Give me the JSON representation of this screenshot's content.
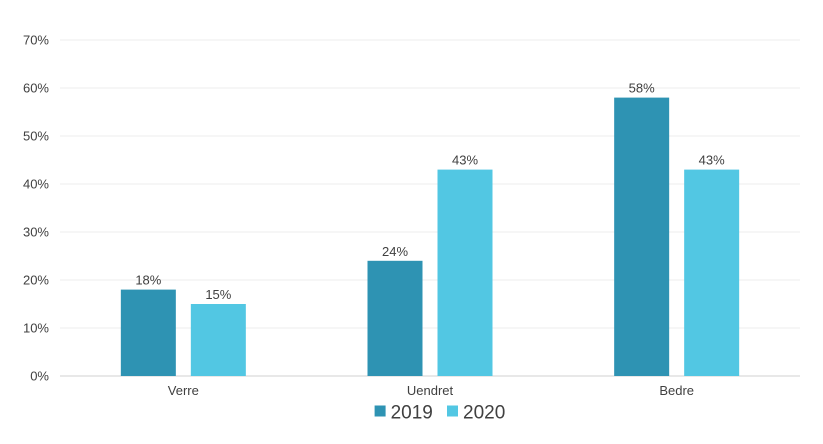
{
  "chart_data": {
    "type": "bar",
    "categories": [
      "Verre",
      "Uendret",
      "Bedre"
    ],
    "series": [
      {
        "name": "2019",
        "values": [
          18,
          24,
          58
        ],
        "color": "#2E93B3"
      },
      {
        "name": "2020",
        "values": [
          15,
          43,
          43
        ],
        "color": "#52C7E3"
      }
    ],
    "ylim": [
      0,
      70
    ],
    "yticks": [
      0,
      10,
      20,
      30,
      40,
      50,
      60,
      70
    ],
    "y_tick_suffix": "%",
    "value_label_suffix": "%",
    "grid": true,
    "legend_position": "bottom",
    "title": "",
    "xlabel": "",
    "ylabel": ""
  }
}
